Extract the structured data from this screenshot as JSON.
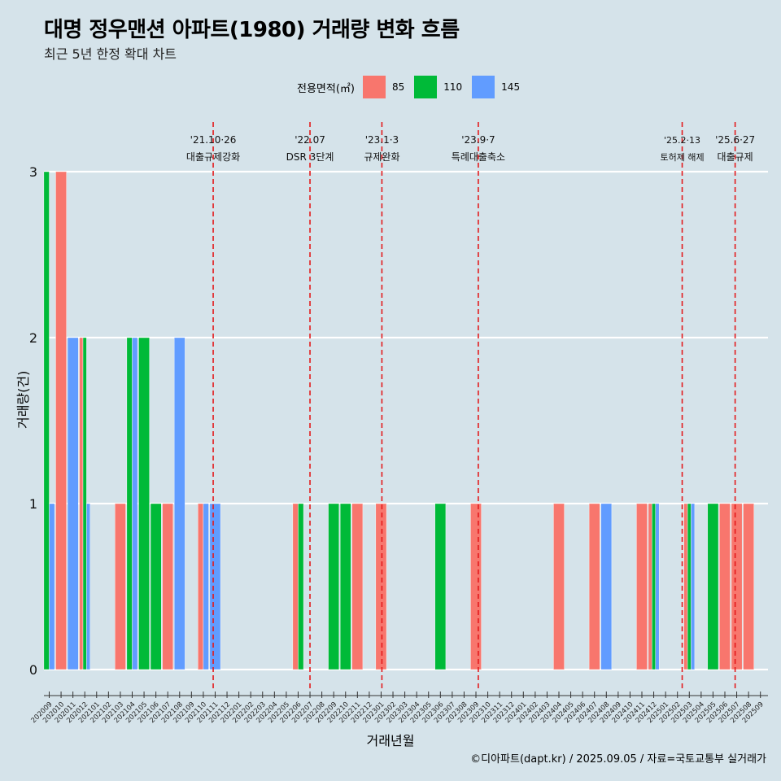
{
  "title": "대명 정우맨션 아파트(1980) 거래량 변화 흐름",
  "subtitle": "최근 5년 한정 확대 차트",
  "caption": "©디아파트(dapt.kr) / 2025.09.05 / 자료=국토교통부 실거래가",
  "legend": {
    "title": "전용면적(㎡)",
    "items": [
      {
        "label": "85",
        "color": "#f8766d"
      },
      {
        "label": "110",
        "color": "#00ba38"
      },
      {
        "label": "145",
        "color": "#619cff"
      }
    ]
  },
  "chart_data": {
    "type": "bar",
    "xlabel": "거래년월",
    "ylabel": "거래량(건)",
    "ylim": [
      0,
      3
    ],
    "yticks": [
      0,
      1,
      2,
      3
    ],
    "grid": true,
    "legend_position": "top",
    "categories": [
      "202009",
      "202010",
      "202011",
      "202012",
      "202101",
      "202102",
      "202103",
      "202104",
      "202105",
      "202106",
      "202107",
      "202108",
      "202109",
      "202110",
      "202111",
      "202112",
      "202201",
      "202202",
      "202203",
      "202204",
      "202205",
      "202206",
      "202207",
      "202208",
      "202209",
      "202210",
      "202211",
      "202212",
      "202301",
      "202302",
      "202303",
      "202304",
      "202305",
      "202306",
      "202307",
      "202308",
      "202309",
      "202310",
      "202311",
      "202312",
      "202401",
      "202402",
      "202403",
      "202404",
      "202405",
      "202406",
      "202407",
      "202408",
      "202409",
      "202410",
      "202411",
      "202412",
      "202501",
      "202502",
      "202503",
      "202504",
      "202505",
      "202506",
      "202507",
      "202508",
      "202509"
    ],
    "bars": [
      {
        "month": "202009",
        "groups": [
          {
            "area": "110",
            "value": 3
          },
          {
            "area": "145",
            "value": 1
          }
        ]
      },
      {
        "month": "202010",
        "groups": [
          {
            "area": "85",
            "value": 3
          }
        ]
      },
      {
        "month": "202011",
        "groups": [
          {
            "area": "145",
            "value": 2
          }
        ]
      },
      {
        "month": "202012",
        "groups": [
          {
            "area": "85",
            "value": 2
          },
          {
            "area": "110",
            "value": 2
          },
          {
            "area": "145",
            "value": 1
          }
        ]
      },
      {
        "month": "202103",
        "groups": [
          {
            "area": "85",
            "value": 1
          }
        ]
      },
      {
        "month": "202104",
        "groups": [
          {
            "area": "110",
            "value": 2
          },
          {
            "area": "145",
            "value": 2
          }
        ]
      },
      {
        "month": "202105",
        "groups": [
          {
            "area": "110",
            "value": 2
          }
        ]
      },
      {
        "month": "202106",
        "groups": [
          {
            "area": "110",
            "value": 1
          }
        ]
      },
      {
        "month": "202107",
        "groups": [
          {
            "area": "85",
            "value": 1
          }
        ]
      },
      {
        "month": "202108",
        "groups": [
          {
            "area": "145",
            "value": 2
          }
        ]
      },
      {
        "month": "202110",
        "groups": [
          {
            "area": "85",
            "value": 1
          },
          {
            "area": "145",
            "value": 1
          }
        ]
      },
      {
        "month": "202111",
        "groups": [
          {
            "area": "145",
            "value": 1
          }
        ]
      },
      {
        "month": "202206",
        "groups": [
          {
            "area": "85",
            "value": 1
          },
          {
            "area": "110",
            "value": 1
          }
        ]
      },
      {
        "month": "202209",
        "groups": [
          {
            "area": "110",
            "value": 1
          }
        ]
      },
      {
        "month": "202210",
        "groups": [
          {
            "area": "110",
            "value": 1
          }
        ]
      },
      {
        "month": "202211",
        "groups": [
          {
            "area": "85",
            "value": 1
          }
        ]
      },
      {
        "month": "202301",
        "groups": [
          {
            "area": "85",
            "value": 1
          }
        ]
      },
      {
        "month": "202306",
        "groups": [
          {
            "area": "110",
            "value": 1
          }
        ]
      },
      {
        "month": "202309",
        "groups": [
          {
            "area": "85",
            "value": 1
          }
        ]
      },
      {
        "month": "202404",
        "groups": [
          {
            "area": "85",
            "value": 1
          }
        ]
      },
      {
        "month": "202407",
        "groups": [
          {
            "area": "85",
            "value": 1
          }
        ]
      },
      {
        "month": "202408",
        "groups": [
          {
            "area": "145",
            "value": 1
          }
        ]
      },
      {
        "month": "202411",
        "groups": [
          {
            "area": "85",
            "value": 1
          }
        ]
      },
      {
        "month": "202412",
        "groups": [
          {
            "area": "85",
            "value": 1
          },
          {
            "area": "110",
            "value": 1
          },
          {
            "area": "145",
            "value": 1
          }
        ]
      },
      {
        "month": "202503",
        "groups": [
          {
            "area": "85",
            "value": 1
          },
          {
            "area": "110",
            "value": 1
          },
          {
            "area": "145",
            "value": 1
          }
        ]
      },
      {
        "month": "202505",
        "groups": [
          {
            "area": "110",
            "value": 1
          }
        ]
      },
      {
        "month": "202506",
        "groups": [
          {
            "area": "85",
            "value": 1
          }
        ]
      },
      {
        "month": "202507",
        "groups": [
          {
            "area": "85",
            "value": 1
          }
        ]
      },
      {
        "month": "202508",
        "groups": [
          {
            "area": "85",
            "value": 1
          }
        ]
      }
    ],
    "events": [
      {
        "date": "2021-10-26",
        "label1": "'21.10·26",
        "label2": "대출규제강화"
      },
      {
        "date": "2022-07-01",
        "label1": "'22.07",
        "label2": "DSR 3단계"
      },
      {
        "date": "2023-01-03",
        "label1": "'23.1·3",
        "label2": "규제완화"
      },
      {
        "date": "2023-09-07",
        "label1": "'23.9·7",
        "label2": "특례대출축소"
      },
      {
        "date": "2025-02-13",
        "label1": "'25.2·13",
        "label2": "토허제 해제"
      },
      {
        "date": "2025-06-27",
        "label1": "'25.6·27",
        "label2": "대출규제"
      }
    ]
  }
}
